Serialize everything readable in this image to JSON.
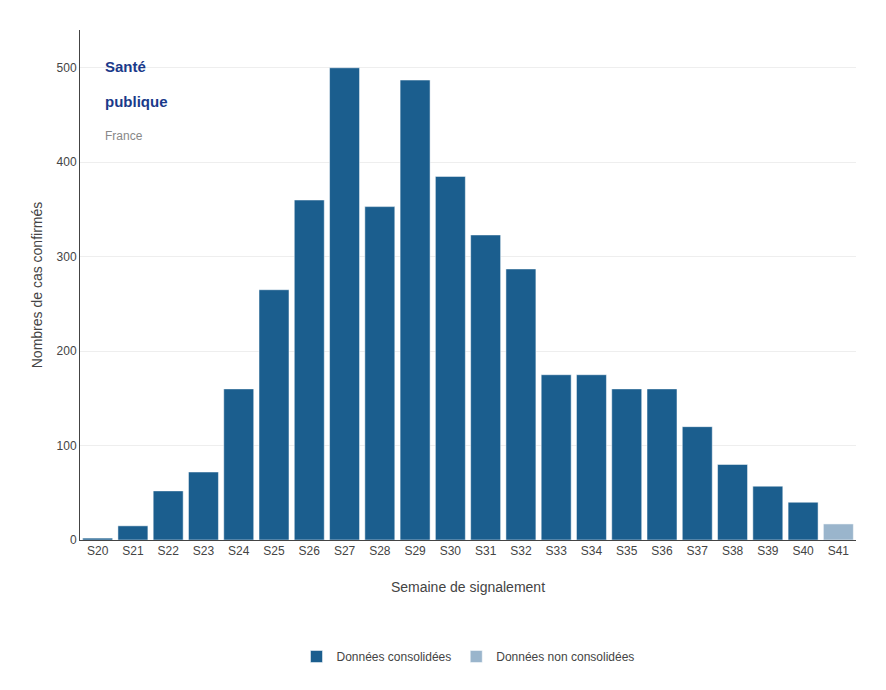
{
  "chart_data": {
    "type": "bar",
    "categories": [
      "S20",
      "S21",
      "S22",
      "S23",
      "S24",
      "S25",
      "S26",
      "S27",
      "S28",
      "S29",
      "S30",
      "S31",
      "S32",
      "S33",
      "S34",
      "S35",
      "S36",
      "S37",
      "S38",
      "S39",
      "S40",
      "S41"
    ],
    "series": [
      {
        "name": "Données consolidées",
        "color": "#1b5e8e",
        "values": [
          2,
          15,
          52,
          72,
          160,
          265,
          360,
          500,
          353,
          487,
          385,
          323,
          287,
          175,
          175,
          160,
          160,
          120,
          80,
          57,
          40,
          null
        ]
      },
      {
        "name": "Données non consolidées",
        "color": "#9ab5cc",
        "values": [
          null,
          null,
          null,
          null,
          null,
          null,
          null,
          null,
          null,
          null,
          null,
          null,
          null,
          null,
          null,
          null,
          null,
          null,
          null,
          null,
          null,
          17
        ]
      }
    ],
    "xlabel": "Semaine de signalement",
    "ylabel": "Nombres de cas confirmés",
    "ylim": [
      0,
      540
    ],
    "yticks": [
      0,
      100,
      200,
      300,
      400,
      500
    ],
    "grid": true,
    "legend": "bottom",
    "annotations": [
      "Santé",
      "publique",
      "France"
    ]
  }
}
